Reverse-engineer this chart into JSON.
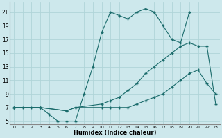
{
  "xlabel": "Humidex (Indice chaleur)",
  "bg_color": "#cde8ec",
  "grid_color": "#b0d4d8",
  "line_color": "#1a6b6b",
  "xlim": [
    -0.5,
    23.5
  ],
  "ylim": [
    4.5,
    22.5
  ],
  "xticks": [
    0,
    1,
    2,
    3,
    4,
    5,
    6,
    7,
    8,
    9,
    10,
    11,
    12,
    13,
    14,
    15,
    16,
    17,
    18,
    19,
    20,
    21,
    22,
    23
  ],
  "yticks": [
    5,
    7,
    9,
    11,
    13,
    15,
    17,
    19,
    21
  ],
  "lines": [
    {
      "x": [
        0,
        1,
        2,
        3,
        4,
        5,
        6,
        7,
        8,
        9,
        10,
        11,
        12,
        13,
        14,
        15,
        16,
        17,
        18,
        19,
        20
      ],
      "y": [
        7,
        7,
        7,
        7,
        6,
        5,
        5,
        5,
        9,
        13,
        18,
        21,
        20.5,
        20,
        21,
        21.5,
        21,
        19,
        17,
        16.5,
        21
      ]
    },
    {
      "x": [
        0,
        3,
        6,
        7,
        10,
        11,
        12,
        13,
        14,
        15,
        16,
        17,
        18,
        19,
        20,
        21,
        22,
        23
      ],
      "y": [
        7,
        7,
        6.5,
        7,
        7.5,
        8,
        8.5,
        9.5,
        10.5,
        12,
        13,
        14,
        15,
        16,
        16.5,
        16,
        16,
        7.5
      ]
    },
    {
      "x": [
        0,
        3,
        6,
        7,
        10,
        11,
        12,
        13,
        14,
        15,
        16,
        17,
        18,
        19,
        20,
        21,
        22,
        23
      ],
      "y": [
        7,
        7,
        6.5,
        7,
        7,
        7,
        7,
        7,
        7.5,
        8,
        8.5,
        9,
        10,
        11,
        12,
        12.5,
        10.5,
        9
      ]
    }
  ]
}
